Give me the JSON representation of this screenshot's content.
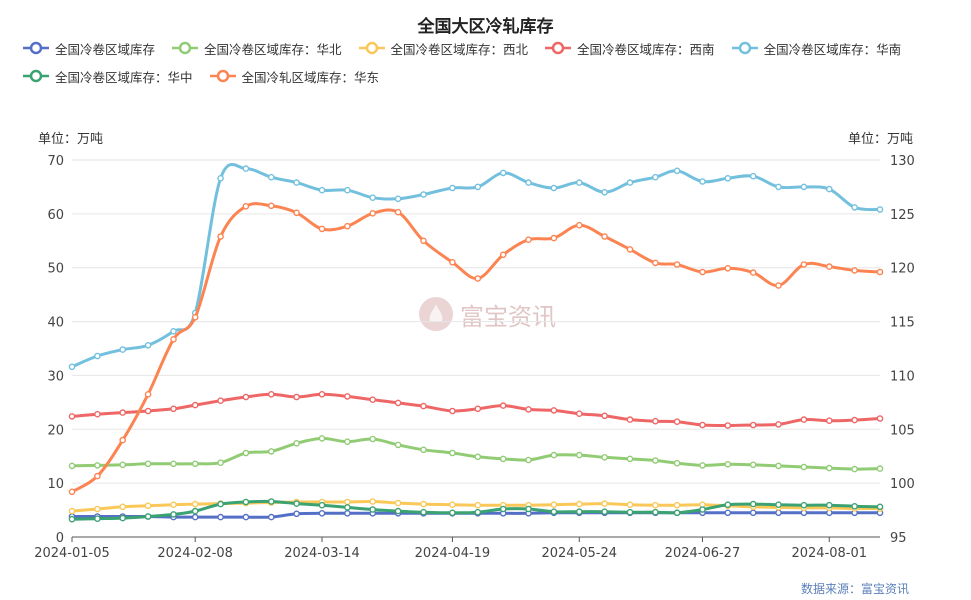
{
  "chart_data": {
    "type": "line",
    "title": "全国大区冷轧库存",
    "left_unit": "单位：万吨",
    "right_unit": "单位：万吨",
    "source": "数据来源：富宝资讯",
    "watermark": "富宝资讯",
    "x_ticks": [
      "2024-01-05",
      "2024-02-08",
      "2024-03-14",
      "2024-04-19",
      "2024-05-24",
      "2024-06-27",
      "2024-08-01"
    ],
    "x_dates": [
      "2024-01-05",
      "2024-01-12",
      "2024-01-19",
      "2024-01-26",
      "2024-02-02",
      "2024-02-08",
      "2024-02-15",
      "2024-02-22",
      "2024-02-29",
      "2024-03-07",
      "2024-03-14",
      "2024-03-21",
      "2024-03-28",
      "2024-04-04",
      "2024-04-11",
      "2024-04-19",
      "2024-04-26",
      "2024-05-03",
      "2024-05-10",
      "2024-05-17",
      "2024-05-24",
      "2024-05-31",
      "2024-06-07",
      "2024-06-14",
      "2024-06-20",
      "2024-06-27",
      "2024-07-04",
      "2024-07-11",
      "2024-07-18",
      "2024-07-25",
      "2024-08-01",
      "2024-08-08",
      "2024-08-15"
    ],
    "y_left": {
      "min": 0,
      "max": 70,
      "ticks": [
        0,
        10,
        20,
        30,
        40,
        50,
        60,
        70
      ]
    },
    "y_right": {
      "min": 95,
      "max": 130,
      "ticks": [
        95,
        100,
        105,
        110,
        115,
        120,
        125,
        130
      ]
    },
    "grid": true,
    "legend_position": "top",
    "series": [
      {
        "name": "全国冷卷区域库存",
        "color": "#5470c6",
        "axis": "left",
        "values": [
          3.8,
          3.8,
          3.8,
          3.8,
          3.7,
          3.7,
          3.7,
          3.7,
          3.7,
          4.3,
          4.4,
          4.4,
          4.4,
          4.4,
          4.4,
          4.4,
          4.4,
          4.4,
          4.4,
          4.5,
          4.5,
          4.5,
          4.5,
          4.5,
          4.5,
          4.5,
          4.5,
          4.5,
          4.5,
          4.5,
          4.5,
          4.5,
          4.5
        ]
      },
      {
        "name": "全国冷卷区域库存：华北",
        "color": "#91cc75",
        "axis": "left",
        "values": [
          13.2,
          13.3,
          13.4,
          13.6,
          13.6,
          13.6,
          13.8,
          15.6,
          15.9,
          17.4,
          18.3,
          17.7,
          18.2,
          17.1,
          16.2,
          15.6,
          14.9,
          14.5,
          14.3,
          15.2,
          15.2,
          14.8,
          14.5,
          14.2,
          13.7,
          13.3,
          13.5,
          13.4,
          13.2,
          13.0,
          12.8,
          12.6,
          12.7
        ]
      },
      {
        "name": "全国冷卷区域库存：西北",
        "color": "#fac858",
        "axis": "left",
        "values": [
          4.8,
          5.2,
          5.6,
          5.8,
          6.0,
          6.1,
          6.2,
          6.3,
          6.4,
          6.5,
          6.5,
          6.5,
          6.6,
          6.3,
          6.1,
          6.0,
          5.9,
          5.9,
          5.9,
          6.0,
          6.1,
          6.2,
          6.0,
          5.9,
          5.9,
          6.0,
          5.8,
          5.6,
          5.5,
          5.4,
          5.4,
          5.3,
          5.3
        ]
      },
      {
        "name": "全国冷卷区域库存：西南",
        "color": "#ee6666",
        "axis": "left",
        "values": [
          22.4,
          22.8,
          23.1,
          23.4,
          23.8,
          24.5,
          25.3,
          26.0,
          26.5,
          26.0,
          26.5,
          26.1,
          25.5,
          24.9,
          24.3,
          23.4,
          23.8,
          24.4,
          23.7,
          23.5,
          22.9,
          22.5,
          21.8,
          21.5,
          21.4,
          20.8,
          20.7,
          20.8,
          20.9,
          21.8,
          21.6,
          21.7,
          22.0
        ]
      },
      {
        "name": "全国冷卷区域库存：华南",
        "color": "#73c0de",
        "axis": "right",
        "values": [
          110.8,
          111.8,
          112.4,
          112.8,
          114.1,
          115.8,
          128.3,
          129.2,
          128.4,
          127.9,
          127.2,
          127.2,
          126.5,
          126.4,
          126.8,
          127.4,
          127.5,
          128.8,
          127.9,
          127.4,
          127.9,
          127.0,
          127.9,
          128.4,
          129.0,
          128.0,
          128.3,
          128.5,
          127.5,
          127.5,
          127.3,
          125.6,
          125.4
        ]
      },
      {
        "name": "全国冷卷区域库存：华中",
        "color": "#3ba272",
        "axis": "left",
        "values": [
          3.3,
          3.4,
          3.5,
          3.8,
          4.2,
          4.8,
          6.1,
          6.5,
          6.6,
          6.2,
          5.9,
          5.5,
          5.1,
          4.8,
          4.6,
          4.5,
          4.6,
          5.2,
          5.2,
          4.7,
          4.7,
          4.7,
          4.6,
          4.6,
          4.5,
          5.1,
          6.0,
          6.1,
          6.0,
          5.9,
          5.9,
          5.7,
          5.6
        ]
      },
      {
        "name": "全国冷轧区域库存：华东",
        "color": "#fc8452",
        "axis": "left",
        "values": [
          8.4,
          11.3,
          18.0,
          26.5,
          36.7,
          40.8,
          55.8,
          61.4,
          61.5,
          60.2,
          57.2,
          57.7,
          60.1,
          60.3,
          55.0,
          51.0,
          48.0,
          52.4,
          55.2,
          55.5,
          57.9,
          55.8,
          53.4,
          50.9,
          50.6,
          49.2,
          49.9,
          49.1,
          46.7,
          50.6,
          50.2,
          49.5,
          49.2
        ]
      }
    ]
  }
}
